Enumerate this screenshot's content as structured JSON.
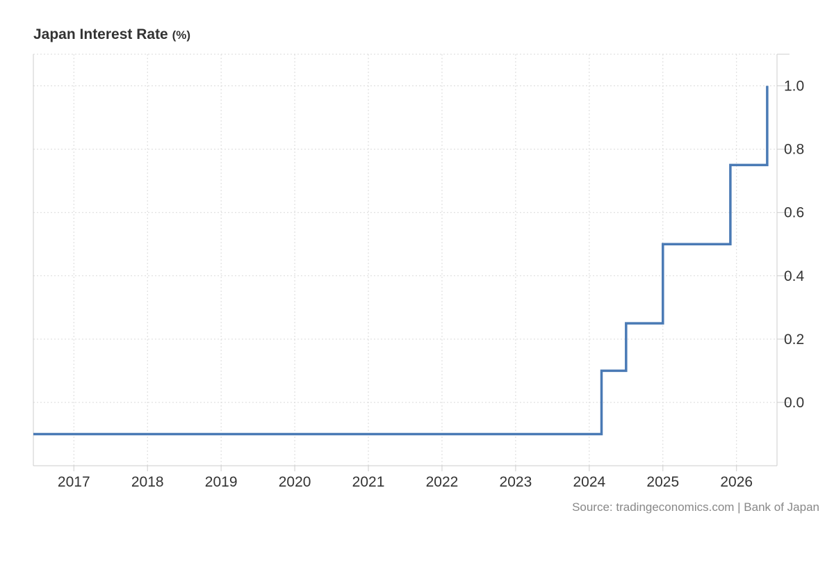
{
  "chart_data": {
    "type": "line",
    "step": true,
    "title": "Japan Interest Rate",
    "unit_label": "(%)",
    "xlabel": "",
    "ylabel": "",
    "x_ticks": [
      "2017",
      "2018",
      "2019",
      "2020",
      "2021",
      "2022",
      "2023",
      "2024",
      "2025",
      "2026"
    ],
    "y_ticks": [
      "0.0",
      "0.2",
      "0.4",
      "0.6",
      "0.8",
      "1.0"
    ],
    "xlim": [
      2016.45,
      2026.55
    ],
    "ylim": [
      -0.2,
      1.1
    ],
    "y_axis_position": "right",
    "grid": true,
    "series": [
      {
        "color": "#4a7ab5",
        "points": [
          {
            "x": "2016-06",
            "y": -0.1
          },
          {
            "x": "2024-03",
            "y": 0.1
          },
          {
            "x": "2024-07",
            "y": 0.25
          },
          {
            "x": "2025-01",
            "y": 0.5
          },
          {
            "x": "2025-12",
            "y": 0.75
          },
          {
            "x": "2026-06",
            "y": 1.0
          }
        ]
      }
    ]
  },
  "source_text": "Source: tradingeconomics.com | Bank of Japan"
}
